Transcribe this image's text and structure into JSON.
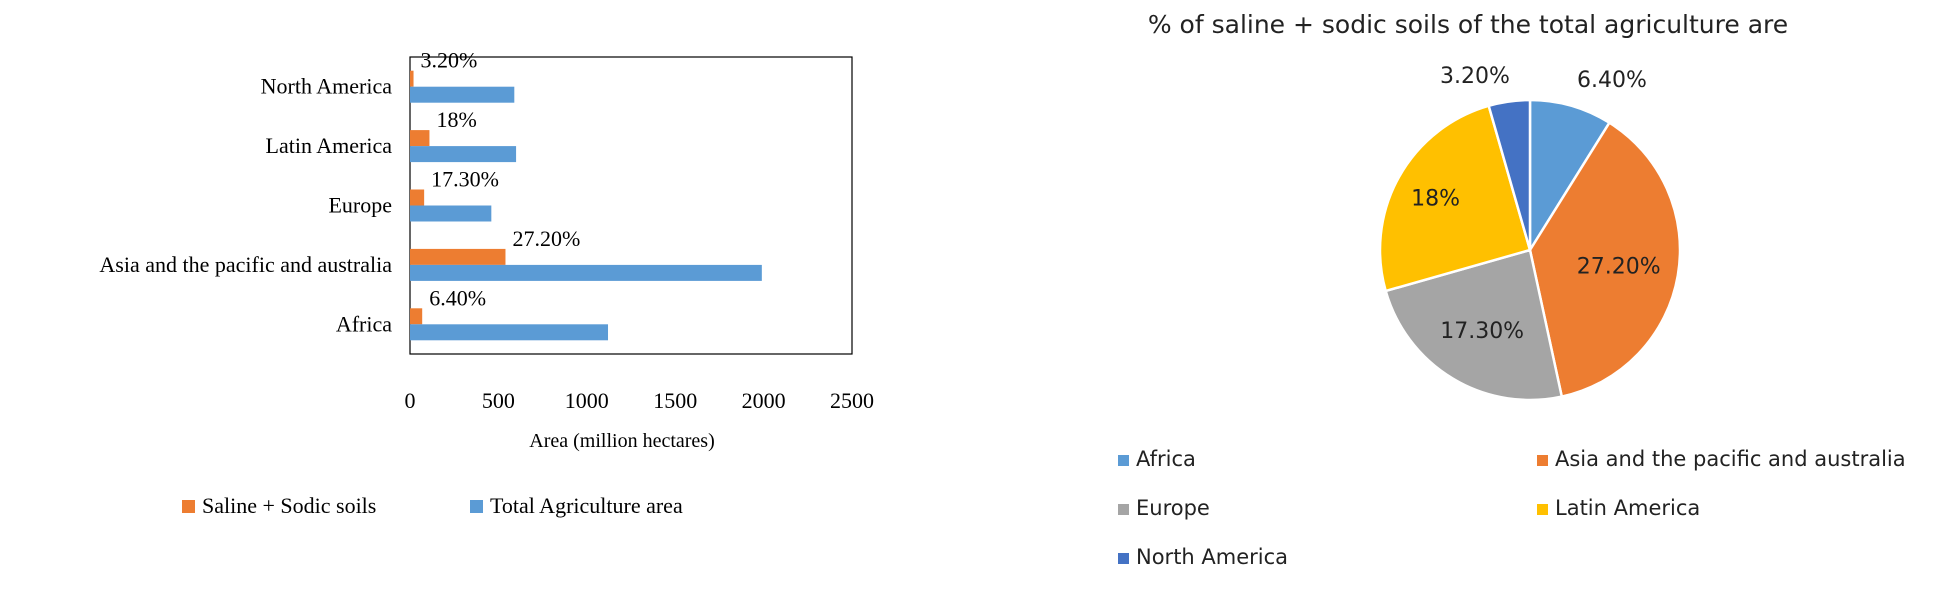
{
  "chart_data": [
    {
      "type": "bar",
      "orientation": "horizontal",
      "categories": [
        "Africa",
        "Asia and the pacific and australia",
        "Europe",
        "Latin America",
        "North America"
      ],
      "series": [
        {
          "name": "Saline + Sodic soils",
          "color": "#ED7D31",
          "values": [
            69,
            540,
            80,
            110,
            20
          ]
        },
        {
          "name": "Total Agriculture area",
          "color": "#5B9BD5",
          "values": [
            1120,
            1990,
            460,
            600,
            590
          ]
        }
      ],
      "data_labels": [
        "6.40%",
        "27.20%",
        "17.30%",
        "18%",
        "3.20%"
      ],
      "title": "",
      "xlabel": "Area (million  hectares)",
      "ylabel": "",
      "xlim": [
        0,
        2500
      ],
      "xticks": [
        "0",
        "500",
        "1000",
        "1500",
        "2000",
        "2500"
      ],
      "grid": false,
      "legend": "bottom"
    },
    {
      "type": "pie",
      "title": "% of saline + sodic soils of the total agriculture are",
      "categories": [
        "Africa",
        "Asia and the pacific and australia",
        "Europe",
        "Latin America",
        "North America"
      ],
      "values": [
        6.4,
        27.2,
        17.3,
        18,
        3.2
      ],
      "labels": [
        "6.40%",
        "27.20%",
        "17.30%",
        "18%",
        "3.20%"
      ],
      "colors": [
        "#5B9BD5",
        "#ED7D31",
        "#A5A5A5",
        "#FFC000",
        "#4472C4"
      ],
      "legend": "bottom"
    }
  ]
}
